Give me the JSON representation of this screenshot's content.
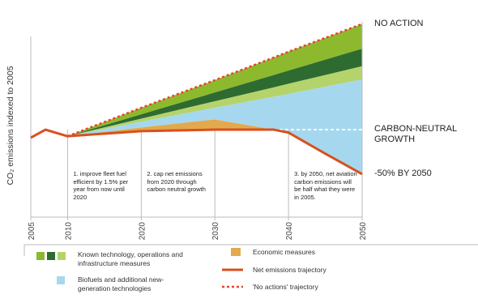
{
  "chart_data": {
    "type": "area",
    "y_label": "CO₂ emissions indexed to 2005",
    "x": [
      2005,
      2007,
      2010,
      2020,
      2030,
      2038,
      2040,
      2045,
      2050
    ],
    "xlim": [
      2005,
      2050
    ],
    "xticks": [
      2005,
      2010,
      2020,
      2030,
      2040,
      2050
    ],
    "ylim": [
      -9,
      270
    ],
    "series": [
      {
        "name": "'No actions' trajectory",
        "color": "#e8452a",
        "style": "dashed",
        "values": [
          null,
          null,
          102,
          141,
          179,
          210,
          218,
          237,
          256
        ]
      },
      {
        "name": "Known technology, operations and infrastructure measures",
        "colors": [
          "#8db92e",
          "#2e6b30",
          "#b5d36b"
        ],
        "values": [
          [
            null,
            null,
            102,
            132,
            162,
            186,
            192,
            207,
            222
          ],
          [
            null,
            null,
            102,
            126,
            150,
            169,
            174,
            186,
            198
          ],
          [
            null,
            null,
            102,
            122,
            141,
            156,
            160,
            170,
            180
          ]
        ]
      },
      {
        "name": "Biofuels and additional new-generation technologies",
        "color": "#a5d8ee"
      },
      {
        "name": "Economic measures",
        "color": "#e3a94c",
        "values": [
          null,
          null,
          102,
          114,
          125,
          111,
          null,
          null,
          null
        ]
      },
      {
        "name": "Net emissions trajectory",
        "color": "#d9501e",
        "values": [
          100,
          111,
          102,
          109,
          111,
          111,
          107,
          78,
          50
        ]
      }
    ],
    "annotations": [
      {
        "text": "NO ACTION",
        "value": 256
      },
      {
        "text": "CARBON-NEUTRAL GROWTH",
        "value": 111
      },
      {
        "text": "-50% BY 2050",
        "value": 50
      }
    ],
    "notes": [
      "1. improve fleet fuel efficient by 1.5% per year from now until 2020",
      "2. cap net emissions from 2020 through carbon neutral growth",
      "3. by 2050, net aviation carbon emissions will be half what they were in 2005."
    ]
  }
}
